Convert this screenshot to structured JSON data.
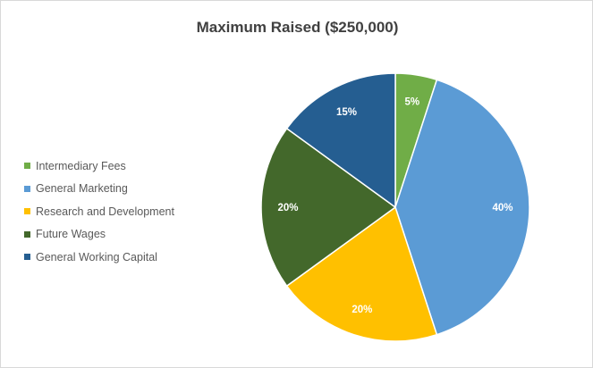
{
  "chart_data": {
    "type": "pie",
    "title": "Maximum Raised ($250,000)",
    "categories": [
      "Intermediary Fees",
      "General Marketing",
      "Research and Development",
      "Future Wages",
      "General Working Capital"
    ],
    "values": [
      5,
      40,
      20,
      20,
      15
    ],
    "data_labels": [
      "5%",
      "40%",
      "20%",
      "20%",
      "15%"
    ],
    "colors": [
      "#70ad47",
      "#5b9bd5",
      "#ffc000",
      "#43682b",
      "#255e91"
    ],
    "start_angle": "12 o'clock",
    "direction": "clockwise",
    "legend_position": "left"
  }
}
